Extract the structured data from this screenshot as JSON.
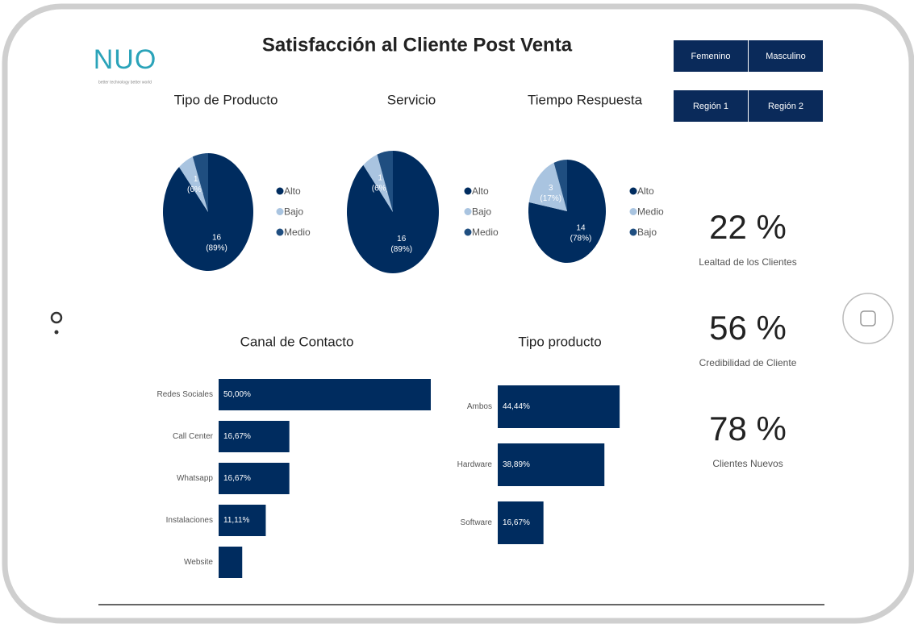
{
  "header": {
    "logo": "NUO",
    "tagline": "better technology better world",
    "title": "Satisfacción al Cliente Post Venta"
  },
  "buttons": [
    "Femenino",
    "Masculino",
    "Región 1",
    "Región 2"
  ],
  "kpis": [
    {
      "value": "22 %",
      "label": "Lealtad de los Clientes"
    },
    {
      "value": "56 %",
      "label": "Credibilidad de Cliente"
    },
    {
      "value": "78 %",
      "label": "Clientes Nuevos"
    }
  ],
  "chart_data": [
    {
      "type": "pie",
      "title": "Tipo de Producto",
      "categories": [
        "Alto",
        "Bajo",
        "Medio"
      ],
      "values": [
        16,
        1,
        1
      ],
      "percent_labels": [
        "(89%)",
        "(6%)",
        null
      ],
      "colors": [
        "#002c5f",
        "#a9c4e0",
        "#1f4e80"
      ]
    },
    {
      "type": "pie",
      "title": "Servicio",
      "categories": [
        "Alto",
        "Bajo",
        "Medio"
      ],
      "values": [
        16,
        1,
        1
      ],
      "percent_labels": [
        "(89%)",
        "(6%)",
        null
      ],
      "colors": [
        "#002c5f",
        "#a9c4e0",
        "#1f4e80"
      ]
    },
    {
      "type": "pie",
      "title": "Tiempo Respuesta",
      "categories": [
        "Alto",
        "Medio",
        "Bajo"
      ],
      "values": [
        14,
        3,
        1
      ],
      "percent_labels": [
        "(78%)",
        "(17%)",
        null
      ],
      "colors": [
        "#002c5f",
        "#a9c4e0",
        "#1f4e80"
      ]
    },
    {
      "type": "bar",
      "title": "Canal de Contacto",
      "categories": [
        "Redes Sociales",
        "Call Center",
        "Whatsapp",
        "Instalaciones",
        "Website"
      ],
      "values": [
        50.0,
        16.67,
        16.67,
        11.11,
        5.56
      ],
      "value_labels": [
        "50,00%",
        "16,67%",
        "16,67%",
        "11,11%",
        null
      ],
      "color": "#002c5f"
    },
    {
      "type": "bar",
      "title": "Tipo producto",
      "categories": [
        "Ambos",
        "Hardware",
        "Software"
      ],
      "values": [
        44.44,
        38.89,
        16.67
      ],
      "value_labels": [
        "44,44%",
        "38,89%",
        "16,67%"
      ],
      "color": "#002c5f"
    }
  ]
}
